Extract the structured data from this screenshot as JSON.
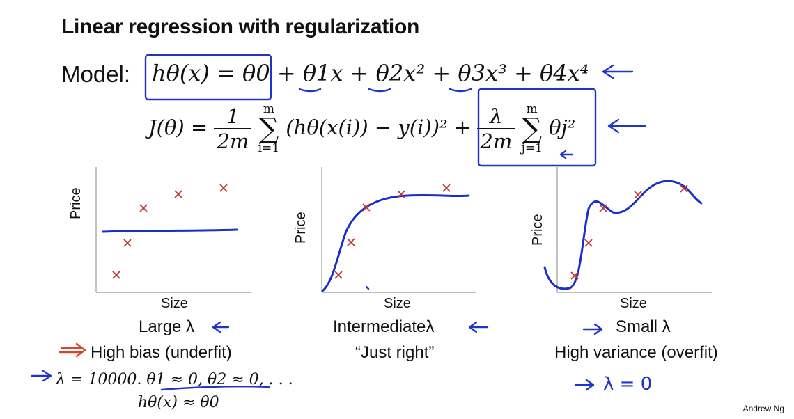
{
  "title": "Linear regression with regularization",
  "model": {
    "label": "Model:",
    "hypothesis": "hθ(x) = θ0 + θ1x + θ2x² + θ3x³ + θ4x⁴"
  },
  "cost": {
    "lhs": "J(θ) =",
    "frac1_num": "1",
    "frac1_den": "2m",
    "sum1_top": "m",
    "sum1_bottom": "i=1",
    "sum1_body": "(hθ(x(i)) − y(i))² +",
    "frac2_num": "λ",
    "frac2_den": "2m",
    "sum2_top": "m",
    "sum2_bottom": "j=1",
    "sum2_body": "θj²"
  },
  "plots": [
    {
      "ylabel": "Price",
      "xlabel": "Size",
      "caption1": "Large λ",
      "caption2": "High bias (underfit)",
      "points": [
        [
          167,
          395
        ],
        [
          183,
          349
        ],
        [
          206,
          299
        ],
        [
          256,
          279
        ],
        [
          321,
          270
        ]
      ]
    },
    {
      "ylabel": "Price",
      "xlabel": "Size",
      "caption1": "Intermediateλ",
      "caption2": "“Just right”",
      "points": [
        [
          486,
          395
        ],
        [
          504,
          348
        ],
        [
          526,
          298
        ],
        [
          576,
          279
        ],
        [
          641,
          270
        ]
      ]
    },
    {
      "ylabel": "Price",
      "xlabel": "Size",
      "caption1": "Small λ",
      "caption2": "High variance (overfit)",
      "points": [
        [
          825,
          396
        ],
        [
          845,
          349
        ],
        [
          866,
          299
        ],
        [
          916,
          280
        ],
        [
          982,
          271
        ]
      ]
    }
  ],
  "notes": {
    "lambda_value": "λ = 10000.  θ1 ≈ 0, θ2 ≈ 0, . . .",
    "h_approx": "hθ(x) ≈ θ0",
    "small_lambda_note": "λ = 0"
  },
  "author": "Andrew Ng",
  "colors": {
    "ink": "#2035c8",
    "cross": "#c4322a",
    "red_ink": "#d8452f"
  }
}
